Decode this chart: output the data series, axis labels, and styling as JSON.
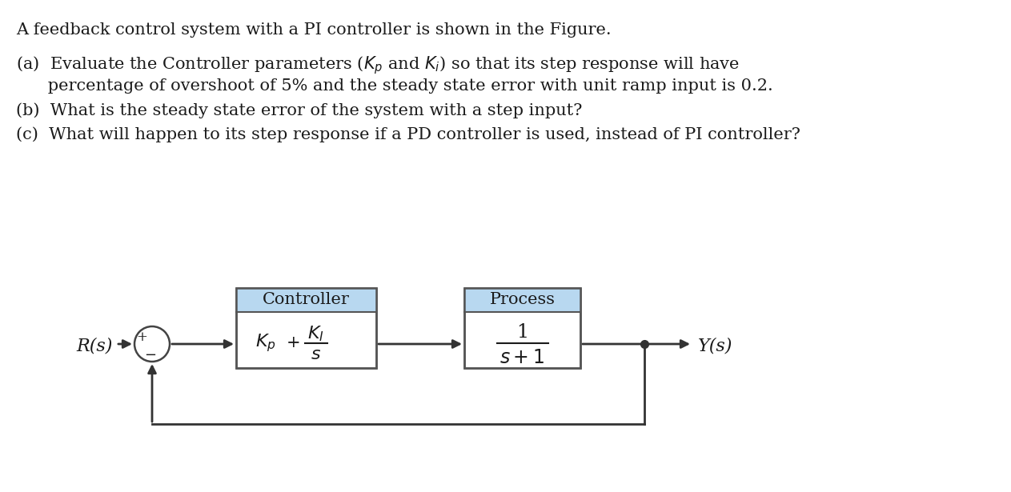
{
  "background_color": "#ffffff",
  "text_color": "#1a1a1a",
  "line1": "A feedback control system with a PI controller is shown in the Figure.",
  "line2a": "(a)  Evaluate the Controller parameters (",
  "line2b": "      percentage of overshoot of 5% and the steady state error with unit ramp input is 0.2.",
  "line3": "(b)  What is the steady state error of the system with a step input?",
  "line4": "(c)  What will happen to its step response if a PD controller is used, instead of PI controller?",
  "block_fill": "#b8d8f0",
  "block_edge": "#555555",
  "arrow_color": "#333333",
  "label_Rs": "R(s)",
  "label_Ys": "Y(s)",
  "controller_title": "Controller",
  "process_title": "Process",
  "font_size_text": 15,
  "font_size_diagram": 15
}
